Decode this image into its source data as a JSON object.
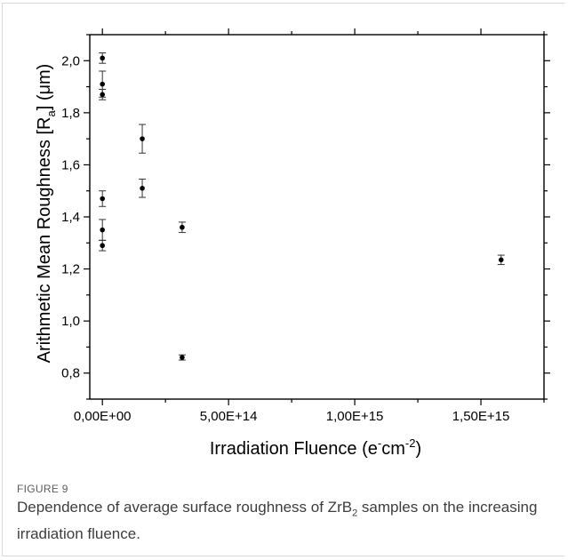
{
  "figure": {
    "label": "FIGURE 9",
    "caption_before": "Dependence of average surface roughness of ZrB",
    "caption_sub": "2",
    "caption_after": " samples on the increasing irradiation fluence."
  },
  "chart_data": {
    "type": "scatter",
    "xlabel": "Irradiation Fluence (e⁻cm⁻²)",
    "xlabel_parts": {
      "main": "Irradiation Fluence (e",
      "sup1": "-",
      "mid": "cm",
      "sup2": "-2",
      "end": ")"
    },
    "ylabel": "Arithmetic Mean Roughness [Ra] (μm)",
    "ylabel_parts": {
      "main": "Arithmetic Mean Roughness [R",
      "sub": "a",
      "end": "] (μm)"
    },
    "xlim": [
      -50000000000000.0,
      1750000000000000.0
    ],
    "ylim": [
      0.7,
      2.1
    ],
    "x_ticks": [
      {
        "value": 0,
        "label": "0,00E+00"
      },
      {
        "value": 500000000000000.0,
        "label": "5,00E+14"
      },
      {
        "value": 1000000000000000.0,
        "label": "1,00E+15"
      },
      {
        "value": 1500000000000000.0,
        "label": "1,50E+15"
      }
    ],
    "y_ticks": [
      {
        "value": 0.8,
        "label": "0,8"
      },
      {
        "value": 1.0,
        "label": "1,0"
      },
      {
        "value": 1.2,
        "label": "1,2"
      },
      {
        "value": 1.4,
        "label": "1,4"
      },
      {
        "value": 1.6,
        "label": "1,6"
      },
      {
        "value": 1.8,
        "label": "1,8"
      },
      {
        "value": 2.0,
        "label": "2,0"
      }
    ],
    "points": [
      {
        "x": 0,
        "y": 2.01,
        "err": 0.02
      },
      {
        "x": 0,
        "y": 1.91,
        "err": 0.05
      },
      {
        "x": 0,
        "y": 1.87,
        "err": 0.02
      },
      {
        "x": 0,
        "y": 1.47,
        "err": 0.03
      },
      {
        "x": 0,
        "y": 1.35,
        "err": 0.04
      },
      {
        "x": 0,
        "y": 1.29,
        "err": 0.02
      },
      {
        "x": 158000000000000.0,
        "y": 1.7,
        "err": 0.055
      },
      {
        "x": 158000000000000.0,
        "y": 1.51,
        "err": 0.035
      },
      {
        "x": 316000000000000.0,
        "y": 1.36,
        "err": 0.02
      },
      {
        "x": 316000000000000.0,
        "y": 0.86,
        "err": 0.01
      },
      {
        "x": 1580000000000000.0,
        "y": 1.235,
        "err": 0.018
      }
    ],
    "colors": {
      "marker": "#000000",
      "error_bar": "#333333",
      "axes": "#000000"
    },
    "grid": false,
    "legend": "none"
  }
}
